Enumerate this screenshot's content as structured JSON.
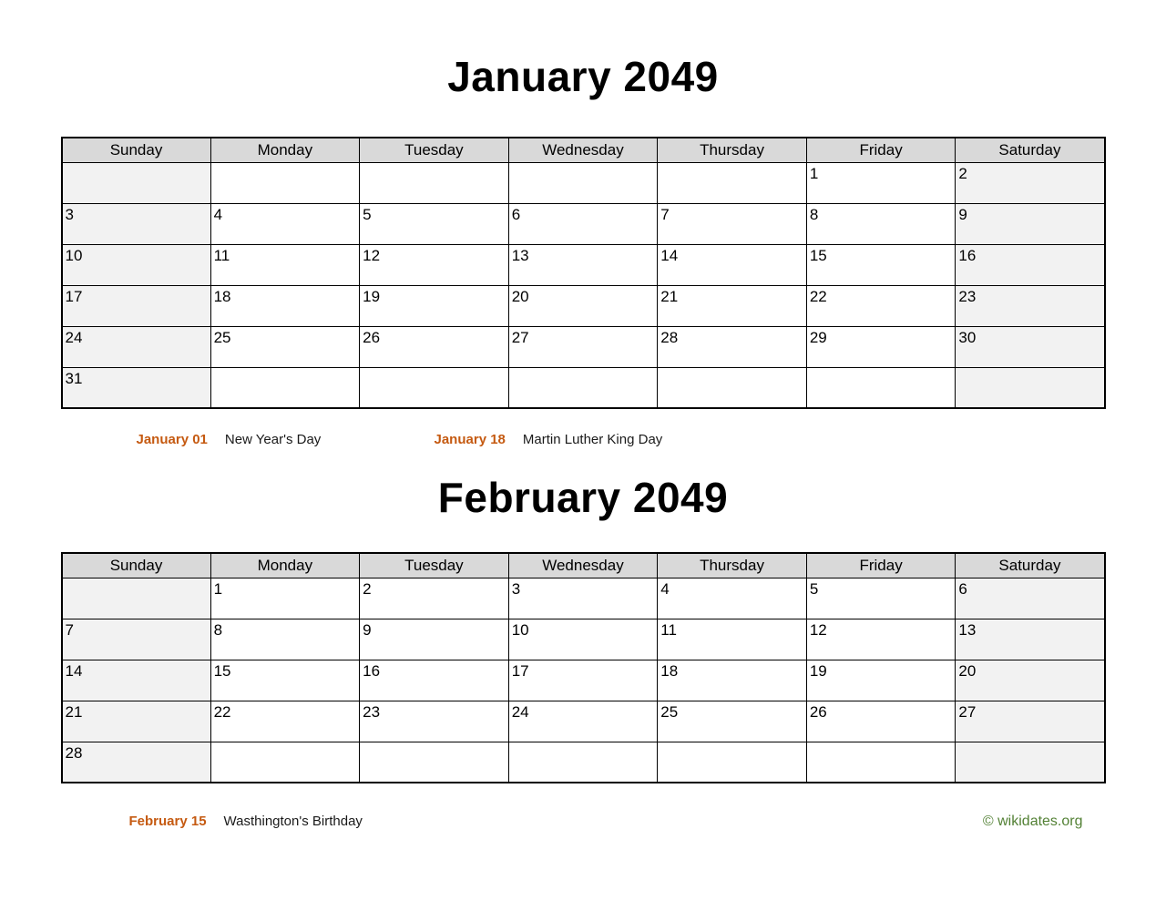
{
  "months": [
    {
      "title": "January 2049",
      "day_headers": [
        "Sunday",
        "Monday",
        "Tuesday",
        "Wednesday",
        "Thursday",
        "Friday",
        "Saturday"
      ],
      "weeks": [
        [
          "",
          "",
          "",
          "",
          "",
          "1",
          "2"
        ],
        [
          "3",
          "4",
          "5",
          "6",
          "7",
          "8",
          "9"
        ],
        [
          "10",
          "11",
          "12",
          "13",
          "14",
          "15",
          "16"
        ],
        [
          "17",
          "18",
          "19",
          "20",
          "21",
          "22",
          "23"
        ],
        [
          "24",
          "25",
          "26",
          "27",
          "28",
          "29",
          "30"
        ],
        [
          "31",
          "",
          "",
          "",
          "",
          "",
          ""
        ]
      ],
      "holidays": [
        {
          "date": "January 01",
          "name": "New Year's Day"
        },
        {
          "date": "January 18",
          "name": "Martin Luther King Day"
        }
      ]
    },
    {
      "title": "February 2049",
      "day_headers": [
        "Sunday",
        "Monday",
        "Tuesday",
        "Wednesday",
        "Thursday",
        "Friday",
        "Saturday"
      ],
      "weeks": [
        [
          "",
          "1",
          "2",
          "3",
          "4",
          "5",
          "6"
        ],
        [
          "7",
          "8",
          "9",
          "10",
          "11",
          "12",
          "13"
        ],
        [
          "14",
          "15",
          "16",
          "17",
          "18",
          "19",
          "20"
        ],
        [
          "21",
          "22",
          "23",
          "24",
          "25",
          "26",
          "27"
        ],
        [
          "28",
          "",
          "",
          "",
          "",
          "",
          ""
        ]
      ],
      "holidays": [
        {
          "date": "February 15",
          "name": "Wasthington's Birthday"
        }
      ]
    }
  ],
  "footer": {
    "credit": "© wikidates.org"
  },
  "colors": {
    "header_bg": "#d9d9d9",
    "weekend_bg": "#f2f2f2",
    "border": "#000000",
    "holiday_date": "#c55a11",
    "credit_green": "#538135"
  }
}
